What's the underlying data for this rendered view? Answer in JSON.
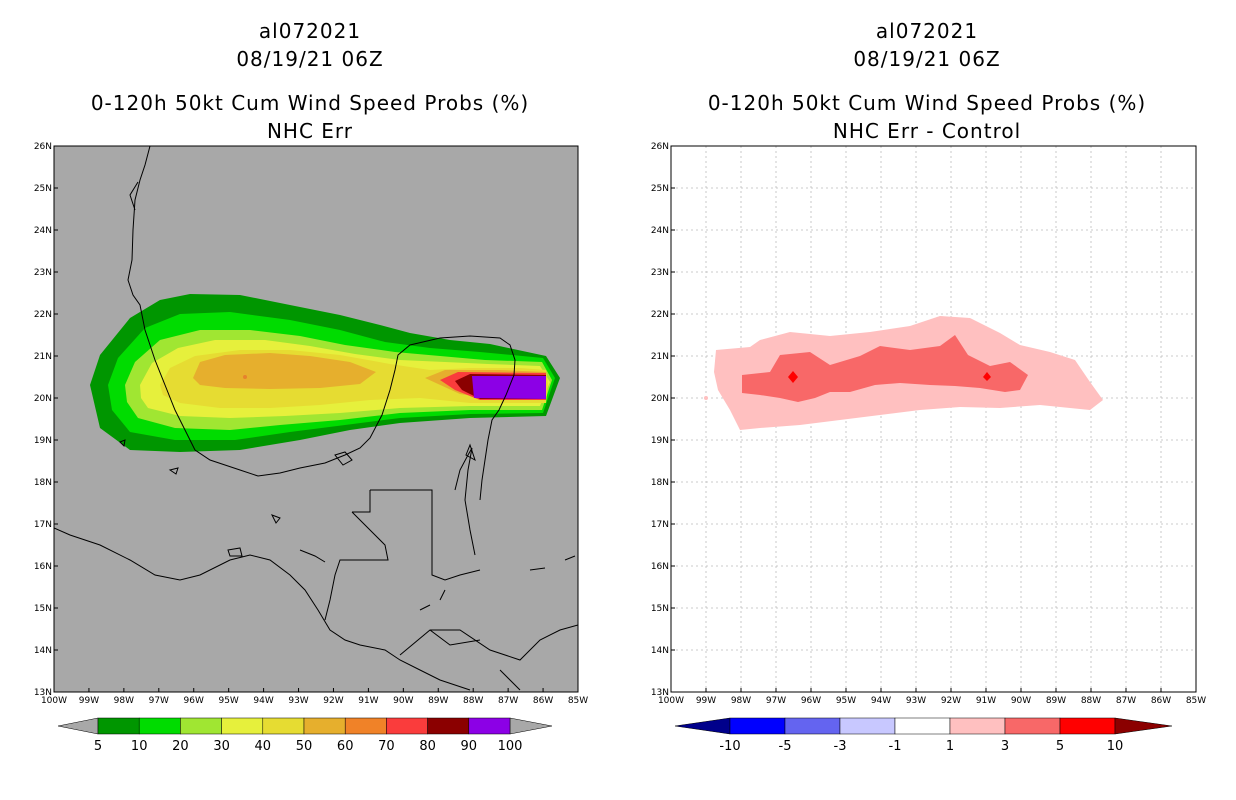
{
  "left_panel": {
    "storm_id": "al072021",
    "datetime": "08/19/21 06Z",
    "product": "0-120h 50kt Cum Wind Speed Probs (%)",
    "subtitle": "NHC Err",
    "background_color": "#a8a8a8",
    "colorbar": {
      "labels": [
        "5",
        "10",
        "20",
        "30",
        "40",
        "50",
        "60",
        "70",
        "80",
        "90",
        "100"
      ],
      "colors": [
        "#009600",
        "#00dc00",
        "#a0e632",
        "#e6f03c",
        "#e6dc32",
        "#e6af2d",
        "#f08228",
        "#fa3c3c",
        "#8b0000",
        "#8c00e6"
      ]
    }
  },
  "right_panel": {
    "storm_id": "al072021",
    "datetime": "08/19/21 06Z",
    "product": "0-120h 50kt Cum Wind Speed Probs (%)",
    "subtitle": "NHC Err - Control",
    "background_color": "#ffffff",
    "colorbar": {
      "labels": [
        "-10",
        "-5",
        "-3",
        "-1",
        "1",
        "3",
        "5",
        "10"
      ],
      "colors": [
        "#00008b",
        "#0000ff",
        "#6464f0",
        "#c8c8ff",
        "#ffffff",
        "#ffc0c0",
        "#f86868",
        "#ff0000",
        "#8b0000"
      ]
    }
  },
  "map": {
    "lat_labels": [
      "26N",
      "25N",
      "24N",
      "23N",
      "22N",
      "21N",
      "20N",
      "19N",
      "18N",
      "17N",
      "16N",
      "15N",
      "14N",
      "13N"
    ],
    "lon_labels": [
      "100W",
      "99W",
      "98W",
      "97W",
      "96W",
      "95W",
      "94W",
      "93W",
      "92W",
      "91W",
      "90W",
      "89W",
      "88W",
      "87W",
      "86W",
      "85W"
    ]
  }
}
